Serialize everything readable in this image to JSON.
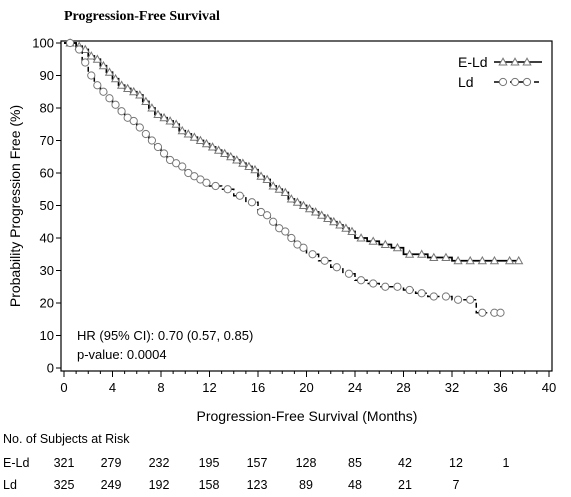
{
  "chart_data": {
    "type": "line",
    "subtype": "kaplan-meier",
    "title": "Progression-Free Survival",
    "xlabel": "Progression-Free Survival (Months)",
    "ylabel": "Probability Progression Free (%)",
    "xlim": [
      0,
      40
    ],
    "ylim": [
      0,
      100
    ],
    "xticks": [
      0,
      4,
      8,
      12,
      16,
      20,
      24,
      28,
      32,
      36,
      40
    ],
    "yticks": [
      0,
      10,
      20,
      30,
      40,
      50,
      60,
      70,
      80,
      90,
      100
    ],
    "legend": {
      "placement": "top-right"
    },
    "series": [
      {
        "name": "E-Ld",
        "line_style": "solid",
        "marker": "triangle",
        "x": [
          0,
          1,
          1.5,
          2,
          2.5,
          3,
          3.5,
          4,
          4.5,
          5,
          5.5,
          6,
          6.5,
          7,
          7.5,
          8,
          8.5,
          9,
          9.5,
          10,
          10.5,
          11,
          11.5,
          12,
          12.5,
          13,
          13.5,
          14,
          14.5,
          15,
          15.5,
          16,
          16.5,
          17,
          17.5,
          18,
          18.5,
          19,
          19.5,
          20,
          20.5,
          21,
          21.5,
          22,
          22.5,
          23,
          23.5,
          24,
          25,
          26,
          27,
          28,
          29,
          30,
          31,
          32,
          33,
          34,
          35,
          36,
          37.5
        ],
        "values": [
          100,
          99,
          98,
          96,
          95,
          93,
          91,
          89,
          87,
          86,
          85,
          84,
          82,
          80,
          78,
          77,
          76,
          75,
          73,
          72,
          71,
          70,
          69,
          68,
          67,
          66,
          65,
          64,
          63,
          62,
          61,
          59,
          58,
          56,
          55,
          54,
          52,
          51,
          50,
          49,
          48,
          47,
          46,
          45,
          44,
          43,
          42,
          40,
          39,
          38,
          37,
          35,
          35,
          34,
          34,
          33,
          33,
          33,
          33,
          33,
          33
        ]
      },
      {
        "name": "Ld",
        "line_style": "dashed",
        "marker": "circle",
        "x": [
          0,
          1,
          1.5,
          2,
          2.5,
          3,
          3.5,
          4,
          4.5,
          5,
          5.5,
          6,
          6.5,
          7,
          7.5,
          8,
          8.5,
          9,
          9.5,
          10,
          10.5,
          11,
          11.5,
          12,
          13,
          14,
          15,
          16,
          16.5,
          17,
          17.5,
          18,
          18.5,
          19,
          19.5,
          20,
          21,
          22,
          23,
          24,
          25,
          26,
          27,
          28,
          29,
          30,
          31,
          32,
          33,
          34,
          35,
          36
        ],
        "values": [
          100,
          98,
          94,
          90,
          87,
          85,
          83,
          81,
          79,
          77,
          76,
          74,
          72,
          70,
          68,
          66,
          64,
          63,
          62,
          60,
          59,
          58,
          57,
          56,
          55,
          53,
          51,
          48,
          47,
          45,
          43,
          42,
          40,
          38,
          37,
          35,
          33,
          31,
          29,
          27,
          26,
          25,
          25,
          24,
          23,
          22,
          22,
          21,
          21,
          17,
          17,
          17
        ]
      }
    ],
    "annotations": [
      "HR (95% CI): 0.70 (0.57, 0.85)",
      "p-value: 0.0004"
    ],
    "risk_table": {
      "title": "No. of Subjects at Risk",
      "rows": [
        {
          "name": "E-Ld",
          "values": [
            321,
            279,
            232,
            195,
            157,
            128,
            85,
            42,
            12,
            1
          ]
        },
        {
          "name": "Ld",
          "values": [
            325,
            249,
            192,
            158,
            123,
            89,
            48,
            21,
            7
          ]
        }
      ]
    }
  }
}
